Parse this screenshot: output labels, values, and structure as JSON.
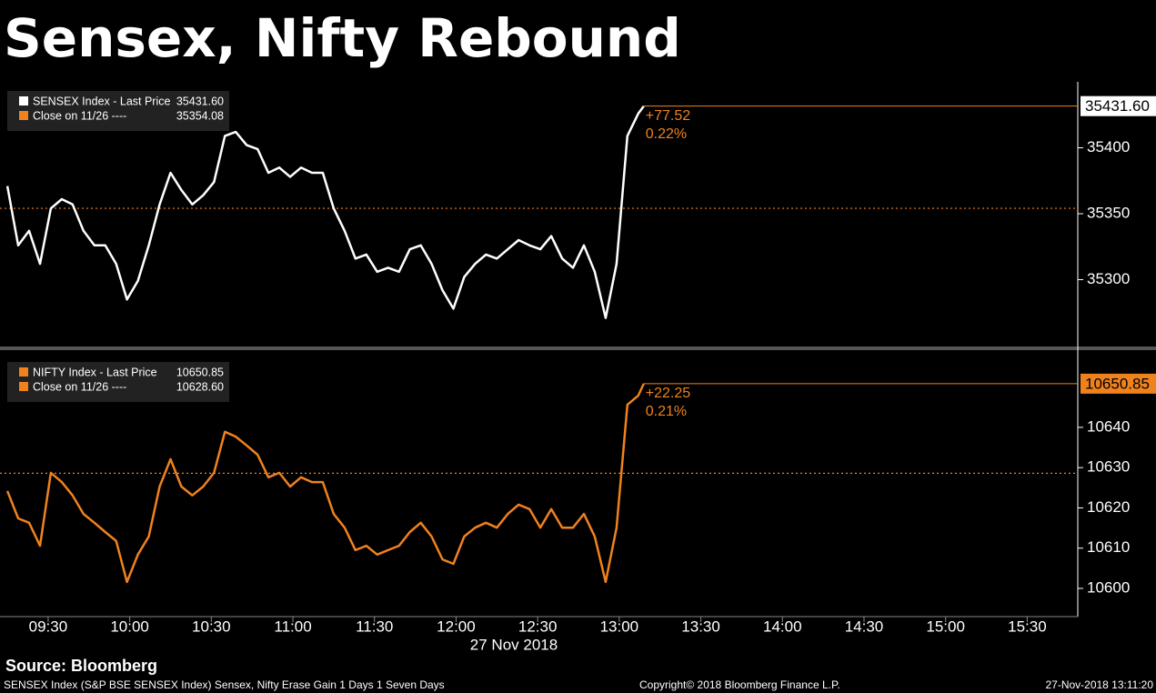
{
  "chart_data": {
    "type": "line",
    "title": "Sensex, Nifty Rebound",
    "xlabel": "27 Nov 2018",
    "xlim": [
      552.3,
      948.6
    ],
    "xticks": [
      {
        "value": 570,
        "label": "09:30"
      },
      {
        "value": 600,
        "label": "10:00"
      },
      {
        "value": 630,
        "label": "10:30"
      },
      {
        "value": 660,
        "label": "11:00"
      },
      {
        "value": 690,
        "label": "11:30"
      },
      {
        "value": 720,
        "label": "12:00"
      },
      {
        "value": 750,
        "label": "12:30"
      },
      {
        "value": 780,
        "label": "13:00"
      },
      {
        "value": 810,
        "label": "13:30"
      },
      {
        "value": 840,
        "label": "14:00"
      },
      {
        "value": 870,
        "label": "14:30"
      },
      {
        "value": 900,
        "label": "15:00"
      },
      {
        "value": 930,
        "label": "15:30"
      }
    ],
    "x": [
      555,
      559,
      563,
      567,
      571,
      575,
      579,
      583,
      587,
      591,
      595,
      599,
      603,
      607,
      611,
      615,
      619,
      623,
      627,
      631,
      635,
      639,
      643,
      647,
      651,
      655,
      659,
      663,
      667,
      671,
      675,
      679,
      683,
      687,
      691,
      695,
      699,
      703,
      707,
      711,
      715,
      719,
      723,
      727,
      731,
      735,
      739,
      743,
      747,
      751,
      755,
      759,
      763,
      767,
      771,
      775,
      779,
      783,
      787,
      789
    ],
    "panels": [
      {
        "ylim": [
          35250,
          35450
        ],
        "yticks": [
          35300,
          35350,
          35400
        ],
        "series": [
          {
            "name": "SENSEX Index - Last Price",
            "color": "#ffffff",
            "values": [
              35371,
              35326,
              35337,
              35312,
              35354,
              35361,
              35357,
              35337,
              35326,
              35326,
              35312,
              35285,
              35299,
              35326,
              35357,
              35381,
              35368,
              35357,
              35364,
              35374,
              35409,
              35412,
              35402,
              35399,
              35381,
              35385,
              35378,
              35385,
              35381,
              35381,
              35354,
              35337,
              35316,
              35319,
              35306,
              35309,
              35306,
              35323,
              35326,
              35312,
              35292,
              35278,
              35302,
              35312,
              35319,
              35316,
              35323,
              35330,
              35326,
              35323,
              35333,
              35316,
              35309,
              35326,
              35306,
              35271,
              35312,
              35409,
              35426,
              35431.6
            ],
            "last_price": {
              "value": 35431.6,
              "label": "35431.60"
            },
            "change": {
              "value": 77.52,
              "label": "+77.52"
            },
            "change_pct": {
              "value": 0.22,
              "label": "0.22%"
            }
          }
        ],
        "close": {
          "name": "Close on 11/26 ----",
          "value": 35354.08,
          "label": "35354.08",
          "color": "#f0821e"
        }
      },
      {
        "ylim": [
          10593,
          10658.5
        ],
        "yticks": [
          10600,
          10610,
          10620,
          10630,
          10640
        ],
        "series": [
          {
            "name": "NIFTY Index - Last Price",
            "color": "#f0821e",
            "values": [
              10624.2,
              10617.4,
              10616.3,
              10610.6,
              10628.7,
              10626.4,
              10623.1,
              10618.5,
              10616.3,
              10614,
              10611.8,
              10601.6,
              10608.4,
              10612.9,
              10625.3,
              10632.1,
              10625.3,
              10623.1,
              10625.3,
              10628.7,
              10638.9,
              10637.7,
              10635.5,
              10633.2,
              10627.6,
              10628.7,
              10625.3,
              10627.6,
              10626.4,
              10626.4,
              10618.5,
              10615.1,
              10609.5,
              10610.6,
              10608.4,
              10609.5,
              10610.6,
              10614,
              10616.3,
              10612.9,
              10607.2,
              10606.1,
              10612.9,
              10615.1,
              10616.3,
              10615.1,
              10618.5,
              10620.8,
              10619.7,
              10615.1,
              10619.7,
              10615.1,
              10615.1,
              10618.5,
              10612.9,
              10601.6,
              10615.1,
              10645.6,
              10647.9,
              10650.85
            ],
            "last_price": {
              "value": 10650.85,
              "label": "10650.85"
            },
            "change": {
              "value": 22.25,
              "label": "+22.25"
            },
            "change_pct": {
              "value": 0.21,
              "label": "0.21%"
            }
          }
        ],
        "close": {
          "name": "Close on 11/26 ----",
          "value": 10628.6,
          "label": "10628.60",
          "color": "#f0821e"
        }
      }
    ]
  },
  "footer": {
    "source": "Source: Bloomberg",
    "description": "SENSEX Index (S&P BSE SENSEX Index) Sensex, Nifty Erase Gain 1 Days 1 Seven Days",
    "copyright": "Copyright© 2018 Bloomberg Finance L.P.",
    "timestamp": "27-Nov-2018 13:11:20"
  }
}
